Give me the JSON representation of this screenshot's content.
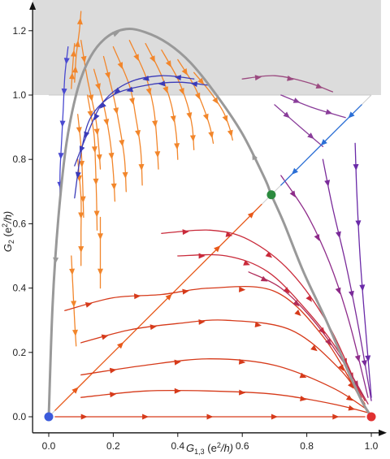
{
  "chart_data": {
    "type": "scatter",
    "title": "",
    "xlabel": {
      "main": "G",
      "sub": "1,3",
      "rest": " (e",
      "sup": "2",
      "tail": "/h)"
    },
    "ylabel": {
      "main": "G",
      "sub": "2",
      "rest": " (e",
      "sup": "2",
      "tail": "/h)"
    },
    "xlim": [
      -0.05,
      1.03
    ],
    "ylim": [
      -0.05,
      1.3
    ],
    "x_ticks": [
      0.0,
      0.2,
      0.4,
      0.6,
      0.8,
      1.0
    ],
    "y_ticks": [
      0.0,
      0.2,
      0.4,
      0.6,
      0.8,
      1.0,
      1.2
    ],
    "x_tick_labels": [
      "0.0",
      "0.2",
      "0.4",
      "0.6",
      "0.8",
      "1.0"
    ],
    "y_tick_labels": [
      "0.0",
      "0.2",
      "0.4",
      "0.6",
      "0.8",
      "1.0",
      "1.2"
    ],
    "shaded_region": {
      "y_min": 1.0,
      "y_max": 1.3,
      "color": "#dcdcdc"
    },
    "diagonal_line": {
      "from": [
        0.0,
        0.0
      ],
      "to": [
        1.0,
        1.0
      ],
      "color": "#cccccc"
    },
    "separatrix": {
      "color": "#999999",
      "points": [
        [
          0.0,
          0.0
        ],
        [
          0.012,
          0.35
        ],
        [
          0.03,
          0.62
        ],
        [
          0.055,
          0.85
        ],
        [
          0.09,
          1.02
        ],
        [
          0.13,
          1.12
        ],
        [
          0.18,
          1.18
        ],
        [
          0.24,
          1.205
        ],
        [
          0.3,
          1.195
        ],
        [
          0.37,
          1.16
        ],
        [
          0.44,
          1.1
        ],
        [
          0.52,
          1.0
        ],
        [
          0.6,
          0.88
        ],
        [
          0.67,
          0.74
        ],
        [
          0.69,
          0.69
        ],
        [
          0.73,
          0.6
        ],
        [
          0.79,
          0.45
        ],
        [
          0.86,
          0.3
        ],
        [
          0.92,
          0.16
        ],
        [
          0.97,
          0.05
        ],
        [
          1.0,
          0.0
        ]
      ]
    },
    "fixed_points": [
      {
        "name": "",
        "x": 0.0,
        "y": 0.0,
        "color": "#3b5bdb"
      },
      {
        "name": "",
        "x": 0.69,
        "y": 0.69,
        "color": "#2b8a3e"
      },
      {
        "name": "",
        "x": 1.0,
        "y": 0.0,
        "color": "#e03131"
      }
    ],
    "series": [
      {
        "color": "#f2862b",
        "points": [
          [
            0.1,
            1.17
          ],
          [
            0.12,
            1.05
          ],
          [
            0.145,
            0.93
          ],
          [
            0.155,
            0.84
          ],
          [
            0.16,
            0.77
          ]
        ]
      },
      {
        "color": "#f2862b",
        "points": [
          [
            0.09,
            0.94
          ],
          [
            0.1,
            0.84
          ],
          [
            0.105,
            0.73
          ],
          [
            0.108,
            0.62
          ]
        ]
      },
      {
        "color": "#f2862b",
        "points": [
          [
            0.12,
            1.0
          ],
          [
            0.14,
            0.88
          ],
          [
            0.145,
            0.78
          ],
          [
            0.148,
            0.68
          ],
          [
            0.15,
            0.58
          ]
        ]
      },
      {
        "color": "#f2862b",
        "points": [
          [
            0.14,
            1.08
          ],
          [
            0.17,
            0.97
          ],
          [
            0.19,
            0.86
          ],
          [
            0.2,
            0.76
          ],
          [
            0.205,
            0.67
          ]
        ]
      },
      {
        "color": "#f2862b",
        "points": [
          [
            0.17,
            1.12
          ],
          [
            0.2,
            1.0
          ],
          [
            0.22,
            0.9
          ],
          [
            0.235,
            0.8
          ],
          [
            0.24,
            0.7
          ]
        ]
      },
      {
        "color": "#f2862b",
        "points": [
          [
            0.2,
            1.15
          ],
          [
            0.25,
            1.03
          ],
          [
            0.27,
            0.93
          ],
          [
            0.285,
            0.83
          ],
          [
            0.29,
            0.72
          ]
        ]
      },
      {
        "color": "#f2862b",
        "points": [
          [
            0.25,
            1.17
          ],
          [
            0.3,
            1.06
          ],
          [
            0.325,
            0.96
          ],
          [
            0.335,
            0.86
          ],
          [
            0.34,
            0.77
          ]
        ]
      },
      {
        "color": "#f2862b",
        "points": [
          [
            0.3,
            1.16
          ],
          [
            0.35,
            1.06
          ],
          [
            0.38,
            0.97
          ],
          [
            0.395,
            0.88
          ],
          [
            0.4,
            0.8
          ]
        ]
      },
      {
        "color": "#f2862b",
        "points": [
          [
            0.35,
            1.14
          ],
          [
            0.4,
            1.05
          ],
          [
            0.43,
            0.97
          ],
          [
            0.445,
            0.9
          ],
          [
            0.45,
            0.83
          ]
        ]
      },
      {
        "color": "#f2862b",
        "points": [
          [
            0.4,
            1.11
          ],
          [
            0.45,
            1.03
          ],
          [
            0.48,
            0.96
          ],
          [
            0.5,
            0.9
          ],
          [
            0.51,
            0.85
          ]
        ]
      },
      {
        "color": "#f2862b",
        "points": [
          [
            0.45,
            1.07
          ],
          [
            0.5,
            1.01
          ],
          [
            0.54,
            0.95
          ],
          [
            0.56,
            0.9
          ],
          [
            0.57,
            0.86
          ]
        ]
      },
      {
        "color": "#f2862b",
        "points": [
          [
            0.09,
            0.8
          ],
          [
            0.1,
            0.68
          ],
          [
            0.1,
            0.57
          ],
          [
            0.1,
            0.47
          ]
        ]
      },
      {
        "color": "#f2862b",
        "points": [
          [
            0.16,
            0.62
          ],
          [
            0.16,
            0.5
          ],
          [
            0.16,
            0.4
          ]
        ]
      },
      {
        "color": "#f2862b",
        "points": [
          [
            0.07,
            0.5
          ],
          [
            0.075,
            0.4
          ],
          [
            0.08,
            0.3
          ],
          [
            0.085,
            0.22
          ]
        ]
      },
      {
        "color": "#f2862b",
        "points": [
          [
            0.08,
            1.04
          ],
          [
            0.085,
            1.12
          ],
          [
            0.095,
            1.2
          ],
          [
            0.1,
            1.26
          ]
        ]
      },
      {
        "color": "#f2862b",
        "points": [
          [
            0.07,
            1.02
          ],
          [
            0.075,
            1.1
          ],
          [
            0.08,
            1.16
          ]
        ]
      },
      {
        "color": "#e8591a",
        "points": [
          [
            0.02,
            0.02
          ],
          [
            0.15,
            0.15
          ],
          [
            0.3,
            0.3
          ],
          [
            0.45,
            0.45
          ],
          [
            0.6,
            0.6
          ],
          [
            0.66,
            0.66
          ]
        ]
      },
      {
        "color": "#d63a1a",
        "points": [
          [
            0.05,
            0.33
          ],
          [
            0.2,
            0.37
          ],
          [
            0.35,
            0.38
          ],
          [
            0.5,
            0.4
          ],
          [
            0.7,
            0.39
          ],
          [
            0.85,
            0.25
          ],
          [
            0.97,
            0.05
          ]
        ]
      },
      {
        "color": "#d63a1a",
        "points": [
          [
            0.1,
            0.23
          ],
          [
            0.25,
            0.27
          ],
          [
            0.4,
            0.29
          ],
          [
            0.55,
            0.3
          ],
          [
            0.75,
            0.27
          ],
          [
            0.9,
            0.15
          ],
          [
            0.98,
            0.04
          ]
        ]
      },
      {
        "color": "#d63a1a",
        "points": [
          [
            0.1,
            0.13
          ],
          [
            0.3,
            0.16
          ],
          [
            0.5,
            0.18
          ],
          [
            0.7,
            0.16
          ],
          [
            0.88,
            0.09
          ],
          [
            0.99,
            0.02
          ]
        ]
      },
      {
        "color": "#d63a1a",
        "points": [
          [
            0.1,
            0.06
          ],
          [
            0.3,
            0.08
          ],
          [
            0.5,
            0.08
          ],
          [
            0.7,
            0.07
          ],
          [
            0.88,
            0.04
          ],
          [
            1.0,
            0.01
          ]
        ]
      },
      {
        "color": "#d63a1a",
        "points": [
          [
            0.02,
            0.0
          ],
          [
            0.2,
            0.0
          ],
          [
            0.4,
            0.0
          ],
          [
            0.6,
            0.0
          ],
          [
            0.8,
            0.0
          ],
          [
            0.98,
            0.0
          ]
        ]
      },
      {
        "color": "#c92a3a",
        "points": [
          [
            0.35,
            0.57
          ],
          [
            0.5,
            0.58
          ],
          [
            0.62,
            0.55
          ],
          [
            0.75,
            0.45
          ],
          [
            0.87,
            0.28
          ],
          [
            0.97,
            0.06
          ]
        ]
      },
      {
        "color": "#c92a3a",
        "points": [
          [
            0.4,
            0.5
          ],
          [
            0.55,
            0.5
          ],
          [
            0.68,
            0.45
          ],
          [
            0.8,
            0.33
          ],
          [
            0.9,
            0.2
          ],
          [
            0.98,
            0.05
          ]
        ]
      },
      {
        "color": "#b02d5a",
        "points": [
          [
            0.62,
            0.45
          ],
          [
            0.72,
            0.4
          ],
          [
            0.82,
            0.3
          ],
          [
            0.92,
            0.16
          ],
          [
            0.99,
            0.04
          ]
        ]
      },
      {
        "color": "#8e2b8a",
        "points": [
          [
            0.72,
            0.75
          ],
          [
            0.8,
            0.63
          ],
          [
            0.87,
            0.48
          ],
          [
            0.93,
            0.3
          ],
          [
            0.99,
            0.06
          ]
        ]
      },
      {
        "color": "#7a2b9a",
        "points": [
          [
            0.85,
            0.8
          ],
          [
            0.88,
            0.65
          ],
          [
            0.92,
            0.48
          ],
          [
            0.96,
            0.28
          ],
          [
            1.0,
            0.05
          ]
        ]
      },
      {
        "color": "#6a2aa8",
        "points": [
          [
            0.95,
            0.85
          ],
          [
            0.955,
            0.7
          ],
          [
            0.965,
            0.5
          ],
          [
            0.98,
            0.3
          ],
          [
            1.0,
            0.06
          ]
        ]
      },
      {
        "color": "#8a3d9a",
        "points": [
          [
            0.7,
            0.97
          ],
          [
            0.78,
            0.9
          ],
          [
            0.85,
            0.84
          ]
        ]
      },
      {
        "color": "#8a3d9a",
        "points": [
          [
            0.72,
            1.0
          ],
          [
            0.82,
            0.96
          ],
          [
            0.92,
            0.93
          ]
        ]
      },
      {
        "color": "#9b4a80",
        "points": [
          [
            0.6,
            1.05
          ],
          [
            0.7,
            1.06
          ],
          [
            0.8,
            1.04
          ],
          [
            0.88,
            1.01
          ]
        ]
      },
      {
        "color": "#2b6fd6",
        "points": [
          [
            0.97,
            0.97
          ],
          [
            0.9,
            0.9
          ],
          [
            0.8,
            0.8
          ],
          [
            0.72,
            0.72
          ]
        ]
      },
      {
        "color": "#3b3bb8",
        "points": [
          [
            0.5,
            1.03
          ],
          [
            0.4,
            1.04
          ],
          [
            0.3,
            1.03
          ],
          [
            0.2,
            1.0
          ],
          [
            0.13,
            0.93
          ],
          [
            0.1,
            0.82
          ],
          [
            0.08,
            0.68
          ]
        ]
      },
      {
        "color": "#3b3bb8",
        "points": [
          [
            0.45,
            1.05
          ],
          [
            0.35,
            1.06
          ],
          [
            0.25,
            1.04
          ],
          [
            0.17,
            0.98
          ],
          [
            0.12,
            0.88
          ],
          [
            0.08,
            0.78
          ]
        ]
      },
      {
        "color": "#4a4ad0",
        "points": [
          [
            0.06,
            1.15
          ],
          [
            0.05,
            1.06
          ],
          [
            0.045,
            0.96
          ],
          [
            0.04,
            0.86
          ],
          [
            0.035,
            0.76
          ],
          [
            0.035,
            0.68
          ]
        ]
      }
    ]
  }
}
